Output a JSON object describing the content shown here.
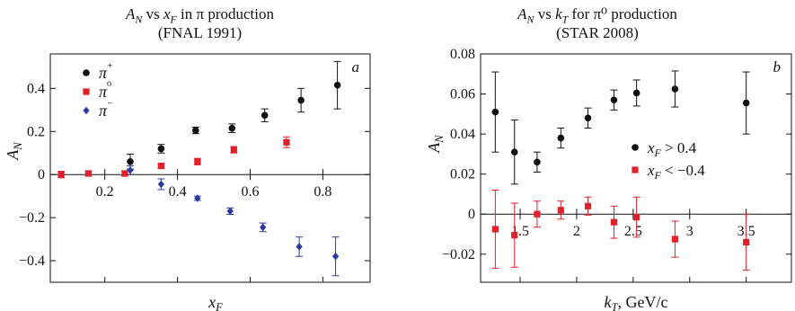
{
  "chart_data": [
    {
      "type": "scatter",
      "title_line1": "A_N vs x_F in π production",
      "title_line2": "(FNAL 1991)",
      "panel_label": "a",
      "xlabel": "x_F",
      "ylabel": "A_N",
      "xlim": [
        0.05,
        0.93
      ],
      "ylim": [
        -0.5,
        0.56
      ],
      "x_ticks": [
        0.2,
        0.4,
        0.6,
        0.8
      ],
      "x_tick_labels": [
        "0.2",
        "0.4",
        "0.6",
        "0.8"
      ],
      "y_ticks": [
        -0.4,
        -0.2,
        0,
        0.2,
        0.4
      ],
      "y_tick_labels": [
        "−0.4",
        "−0.2",
        "0",
        "0.2",
        "0.4"
      ],
      "legend": {
        "position": "top-left"
      },
      "series": [
        {
          "name": "π⁺",
          "color": "#111111",
          "marker": "circle",
          "points": [
            {
              "x": 0.27,
              "y": 0.06,
              "err": 0.035
            },
            {
              "x": 0.355,
              "y": 0.12,
              "err": 0.02
            },
            {
              "x": 0.45,
              "y": 0.205,
              "err": 0.015
            },
            {
              "x": 0.55,
              "y": 0.215,
              "err": 0.02
            },
            {
              "x": 0.64,
              "y": 0.275,
              "err": 0.03
            },
            {
              "x": 0.74,
              "y": 0.345,
              "err": 0.055
            },
            {
              "x": 0.84,
              "y": 0.415,
              "err": 0.11
            }
          ]
        },
        {
          "name": "π⁰",
          "color": "#e0202a",
          "marker": "square",
          "points": [
            {
              "x": 0.08,
              "y": 0.0,
              "err": 0.015
            },
            {
              "x": 0.155,
              "y": 0.005,
              "err": 0.01
            },
            {
              "x": 0.255,
              "y": 0.005,
              "err": 0.01
            },
            {
              "x": 0.355,
              "y": 0.04,
              "err": 0.01
            },
            {
              "x": 0.455,
              "y": 0.06,
              "err": 0.015
            },
            {
              "x": 0.555,
              "y": 0.115,
              "err": 0.015
            },
            {
              "x": 0.7,
              "y": 0.15,
              "err": 0.025
            }
          ]
        },
        {
          "name": "π⁻",
          "color": "#2b3aa0",
          "marker": "diamond",
          "points": [
            {
              "x": 0.27,
              "y": 0.02,
              "err": 0.02
            },
            {
              "x": 0.355,
              "y": -0.045,
              "err": 0.025
            },
            {
              "x": 0.455,
              "y": -0.11,
              "err": 0.01
            },
            {
              "x": 0.545,
              "y": -0.17,
              "err": 0.015
            },
            {
              "x": 0.635,
              "y": -0.245,
              "err": 0.02
            },
            {
              "x": 0.735,
              "y": -0.335,
              "err": 0.045
            },
            {
              "x": 0.835,
              "y": -0.38,
              "err": 0.09
            }
          ]
        }
      ]
    },
    {
      "type": "scatter",
      "title_line1": "A_N vs k_T for π⁰ production",
      "title_line2": "(STAR 2008)",
      "panel_label": "b",
      "xlabel": "k_T, GeV/c",
      "ylabel": "A_N",
      "xlim": [
        1.15,
        3.9
      ],
      "ylim": [
        -0.034,
        0.08
      ],
      "x_ticks": [
        1.5,
        2,
        2.5,
        3,
        3.5
      ],
      "x_tick_labels": [
        "1.5",
        "2",
        "2.5",
        "3",
        "3.5"
      ],
      "y_ticks": [
        -0.02,
        0,
        0.02,
        0.04,
        0.06,
        0.08
      ],
      "y_tick_labels": [
        "−0.02",
        "0",
        "0.02",
        "0.04",
        "0.06",
        "0.08"
      ],
      "legend": {
        "position": "center-right"
      },
      "series": [
        {
          "name": "x_F > 0.4",
          "color": "#111111",
          "marker": "circle",
          "points": [
            {
              "x": 1.28,
              "y": 0.051,
              "err": 0.02
            },
            {
              "x": 1.45,
              "y": 0.031,
              "err": 0.016
            },
            {
              "x": 1.65,
              "y": 0.026,
              "err": 0.005
            },
            {
              "x": 1.86,
              "y": 0.038,
              "err": 0.005
            },
            {
              "x": 2.1,
              "y": 0.048,
              "err": 0.005
            },
            {
              "x": 2.33,
              "y": 0.057,
              "err": 0.005
            },
            {
              "x": 2.53,
              "y": 0.0605,
              "err": 0.0065
            },
            {
              "x": 2.87,
              "y": 0.0625,
              "err": 0.009
            },
            {
              "x": 3.5,
              "y": 0.0555,
              "err": 0.0155
            }
          ]
        },
        {
          "name": "x_F < −0.4",
          "color": "#e0202a",
          "marker": "square",
          "points": [
            {
              "x": 1.28,
              "y": -0.0075,
              "err": 0.0195
            },
            {
              "x": 1.45,
              "y": -0.0105,
              "err": 0.016
            },
            {
              "x": 1.65,
              "y": 0.0,
              "err": 0.0065
            },
            {
              "x": 1.86,
              "y": 0.002,
              "err": 0.0045
            },
            {
              "x": 2.1,
              "y": 0.004,
              "err": 0.0045
            },
            {
              "x": 2.33,
              "y": -0.004,
              "err": 0.008
            },
            {
              "x": 2.53,
              "y": -0.0015,
              "err": 0.01
            },
            {
              "x": 2.87,
              "y": -0.0125,
              "err": 0.009
            },
            {
              "x": 3.5,
              "y": -0.014,
              "err": 0.014
            }
          ]
        }
      ]
    }
  ]
}
